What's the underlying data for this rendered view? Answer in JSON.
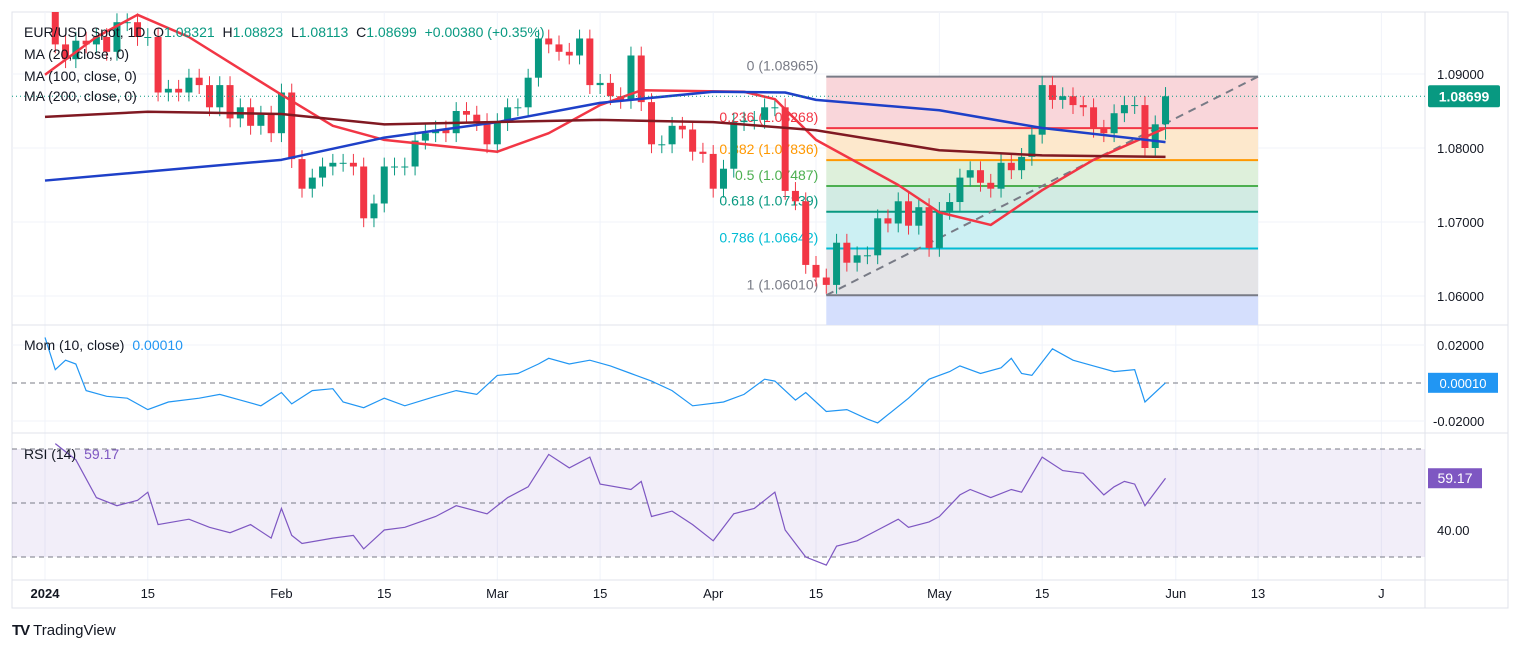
{
  "header": {
    "symbol": "EUR/USD Spot, 1D",
    "open_label": "O",
    "open": "1.08321",
    "high_label": "H",
    "high": "1.08823",
    "low_label": "L",
    "low": "1.08113",
    "close_label": "C",
    "close": "1.08699",
    "change": "+0.00380 (+0.35%)",
    "ma_legends": [
      "MA (20, close, 0)",
      "MA (100, close, 0)",
      "MA (200, close, 0)"
    ]
  },
  "brand": "TradingView",
  "colors": {
    "up": "#089981",
    "down": "#f23645",
    "ma20": "#f23645",
    "ma100": "#1e40c8",
    "ma200": "#801922",
    "momentum": "#2196f3",
    "rsi": "#7e57c2",
    "last_price": "#089981"
  },
  "chart_data": [
    {
      "type": "candlestick",
      "title": "EUR/USD Spot, 1D",
      "ylim": [
        1.0555,
        1.0982
      ],
      "y_ticks": [
        "1.06000",
        "1.07000",
        "1.08000",
        "1.09000"
      ],
      "x_ticks": [
        "2024",
        "15",
        "Feb",
        "15",
        "Mar",
        "15",
        "Apr",
        "15",
        "May",
        "15",
        "Jun",
        "13",
        "J"
      ],
      "last_price": "1.08699",
      "candles": {
        "2024-01": {
          "days": [
            1,
            2,
            3,
            4,
            5,
            8,
            9,
            10,
            11,
            12,
            15,
            16,
            17,
            18,
            19,
            22,
            23,
            24,
            25,
            26,
            29,
            30,
            31
          ],
          "close": [
            1.104,
            1.094,
            1.092,
            1.0945,
            1.094,
            1.095,
            1.093,
            1.097,
            1.097,
            1.095,
            1.095,
            1.0875,
            1.088,
            1.0875,
            1.0895,
            1.0885,
            1.0855,
            1.0885,
            1.084,
            1.0855,
            1.083,
            1.0845,
            1.082
          ]
        },
        "2024-02": {
          "days": [
            1,
            2,
            5,
            6,
            7,
            8,
            9,
            12,
            13,
            14,
            15,
            16,
            19,
            20,
            21,
            22,
            23,
            26,
            27,
            28,
            29
          ],
          "close": [
            1.0875,
            1.0785,
            1.0745,
            1.076,
            1.0775,
            1.078,
            1.078,
            1.0775,
            1.0705,
            1.0725,
            1.0775,
            1.0775,
            1.0775,
            1.081,
            1.082,
            1.0825,
            1.082,
            1.085,
            1.0845,
            1.0835,
            1.0805
          ]
        },
        "2024-03": {
          "days": [
            1,
            4,
            5,
            6,
            7,
            8,
            11,
            12,
            13,
            14,
            15,
            18,
            19,
            20,
            21,
            22,
            25,
            26,
            27,
            28,
            29
          ],
          "close": [
            1.0835,
            1.0855,
            1.0855,
            1.0895,
            1.0948,
            1.094,
            1.093,
            1.0925,
            1.0948,
            1.0885,
            1.0888,
            1.087,
            1.0865,
            1.0925,
            1.0862,
            1.0805,
            1.0805,
            1.083,
            1.0825,
            1.0795,
            1.0792
          ]
        },
        "2024-04": {
          "days": [
            1,
            2,
            3,
            4,
            5,
            8,
            9,
            10,
            11,
            12,
            15,
            16,
            17,
            18,
            19,
            22,
            23,
            24,
            25,
            26,
            29,
            30
          ],
          "close": [
            1.0745,
            1.0772,
            1.0835,
            1.0837,
            1.0838,
            1.0855,
            1.0855,
            1.0742,
            1.0728,
            1.0642,
            1.0625,
            1.0615,
            1.0672,
            1.0645,
            1.0655,
            1.0655,
            1.0705,
            1.0698,
            1.0728,
            1.0695,
            1.072,
            1.0665
          ]
        },
        "2024-05": {
          "days": [
            1,
            2,
            3,
            6,
            7,
            8,
            9,
            10,
            13,
            14,
            15,
            16,
            17,
            20,
            21,
            22,
            23,
            24,
            27,
            28,
            29,
            30,
            31
          ],
          "close": [
            1.0715,
            1.0727,
            1.076,
            1.077,
            1.0753,
            1.0745,
            1.078,
            1.077,
            1.0788,
            1.0818,
            1.0885,
            1.0865,
            1.087,
            1.0858,
            1.0855,
            1.0826,
            1.082,
            1.0847,
            1.0858,
            1.0858,
            1.08,
            1.0832,
            1.08699
          ]
        }
      },
      "last_candle": {
        "date": "2024-05-31",
        "open": 1.08321,
        "high": 1.08823,
        "low": 1.08113,
        "close": 1.08699
      },
      "moving_averages": [
        {
          "name": "MA (20, close, 0)",
          "points": [
            [
              "2024-01-01",
              1.0899
            ],
            [
              "2024-01-08",
              1.095
            ],
            [
              "2024-01-12",
              1.098
            ],
            [
              "2024-01-19",
              1.095
            ],
            [
              "2024-02-01",
              1.0872
            ],
            [
              "2024-02-08",
              1.083
            ],
            [
              "2024-02-15",
              1.0811
            ],
            [
              "2024-03-01",
              1.0795
            ],
            [
              "2024-03-08",
              1.082
            ],
            [
              "2024-03-15",
              1.0858
            ],
            [
              "2024-03-21",
              1.0878
            ],
            [
              "2024-04-04",
              1.0876
            ],
            [
              "2024-04-09",
              1.0866
            ],
            [
              "2024-04-15",
              1.0811
            ],
            [
              "2024-04-25",
              1.075
            ],
            [
              "2024-05-01",
              1.0713
            ],
            [
              "2024-05-08",
              1.0696
            ],
            [
              "2024-05-15",
              1.0743
            ],
            [
              "2024-05-22",
              1.0784
            ],
            [
              "2024-05-31",
              1.0827
            ]
          ]
        },
        {
          "name": "MA (100, close, 0)",
          "points": [
            [
              "2024-01-01",
              1.0756
            ],
            [
              "2024-02-01",
              1.0784
            ],
            [
              "2024-02-15",
              1.0814
            ],
            [
              "2024-03-01",
              1.0835
            ],
            [
              "2024-03-15",
              1.0861
            ],
            [
              "2024-04-01",
              1.0876
            ],
            [
              "2024-04-10",
              1.0875
            ],
            [
              "2024-04-15",
              1.0865
            ],
            [
              "2024-05-01",
              1.0851
            ],
            [
              "2024-05-15",
              1.0827
            ],
            [
              "2024-05-31",
              1.0808
            ]
          ]
        },
        {
          "name": "MA (200, close, 0)",
          "points": [
            [
              "2024-01-01",
              1.0842
            ],
            [
              "2024-01-15",
              1.0849
            ],
            [
              "2024-02-01",
              1.0846
            ],
            [
              "2024-02-15",
              1.0832
            ],
            [
              "2024-03-15",
              1.0838
            ],
            [
              "2024-04-01",
              1.0835
            ],
            [
              "2024-04-15",
              1.0824
            ],
            [
              "2024-05-01",
              1.0797
            ],
            [
              "2024-05-15",
              1.079
            ],
            [
              "2024-05-31",
              1.0788
            ]
          ]
        }
      ],
      "fibonacci": {
        "from": {
          "date": "2024-04-16",
          "price": 1.0601
        },
        "to": {
          "date": "2024-06-13",
          "price": 1.08965
        },
        "levels": [
          {
            "ratio": 0,
            "price": 1.08965,
            "label": "0 (1.08965)",
            "color": "#787b86",
            "fill": "#f9d6da"
          },
          {
            "ratio": 0.236,
            "price": 1.08268,
            "label": "0.236 (1.08268)",
            "color": "#f23645",
            "fill": "#fde8cc"
          },
          {
            "ratio": 0.382,
            "price": 1.07836,
            "label": "0.382 (1.07836)",
            "color": "#ff9800",
            "fill": "#def0db"
          },
          {
            "ratio": 0.5,
            "price": 1.07487,
            "label": "0.5 (1.07487)",
            "color": "#4caf50",
            "fill": "#d2ebe3"
          },
          {
            "ratio": 0.618,
            "price": 1.07139,
            "label": "0.618 (1.07139)",
            "color": "#089981",
            "fill": "#ccf0f3"
          },
          {
            "ratio": 0.786,
            "price": 1.06642,
            "label": "0.786 (1.06642)",
            "color": "#00bcd4",
            "fill": "#e4e4e7"
          },
          {
            "ratio": 1,
            "price": 1.0601,
            "label": "1 (1.06010)",
            "color": "#787b86",
            "fill": "#d5dffd"
          }
        ]
      }
    },
    {
      "type": "line",
      "title": "Mom (10, close)",
      "value": "0.00010",
      "y_ticks": [
        "0.02000",
        "-0.02000"
      ],
      "zero_line": true,
      "points": [
        [
          "2024-01-01",
          0.024
        ],
        [
          "2024-01-02",
          0.007
        ],
        [
          "2024-01-03",
          0.012
        ],
        [
          "2024-01-04",
          0.01
        ],
        [
          "2024-01-05",
          -0.004
        ],
        [
          "2024-01-09",
          -0.007
        ],
        [
          "2024-01-11",
          -0.008
        ],
        [
          "2024-01-15",
          -0.014
        ],
        [
          "2024-01-17",
          -0.01
        ],
        [
          "2024-01-22",
          -0.008
        ],
        [
          "2024-01-24",
          -0.006
        ],
        [
          "2024-01-26",
          -0.009
        ],
        [
          "2024-01-30",
          -0.012
        ],
        [
          "2024-02-01",
          -0.005
        ],
        [
          "2024-02-02",
          -0.011
        ],
        [
          "2024-02-06",
          -0.004
        ],
        [
          "2024-02-08",
          -0.003
        ],
        [
          "2024-02-09",
          -0.01
        ],
        [
          "2024-02-13",
          -0.013
        ],
        [
          "2024-02-15",
          -0.008
        ],
        [
          "2024-02-19",
          -0.012
        ],
        [
          "2024-02-22",
          -0.007
        ],
        [
          "2024-02-26",
          -0.004
        ],
        [
          "2024-02-28",
          -0.006
        ],
        [
          "2024-03-01",
          0.004
        ],
        [
          "2024-03-05",
          0.005
        ],
        [
          "2024-03-07",
          0.01
        ],
        [
          "2024-03-08",
          0.013
        ],
        [
          "2024-03-12",
          0.01
        ],
        [
          "2024-03-14",
          0.012
        ],
        [
          "2024-03-18",
          0.009
        ],
        [
          "2024-03-20",
          0.005
        ],
        [
          "2024-03-22",
          0.001
        ],
        [
          "2024-03-26",
          -0.004
        ],
        [
          "2024-03-28",
          -0.012
        ],
        [
          "2024-04-02",
          -0.01
        ],
        [
          "2024-04-04",
          -0.006
        ],
        [
          "2024-04-08",
          0.002
        ],
        [
          "2024-04-09",
          0.001
        ],
        [
          "2024-04-11",
          -0.009
        ],
        [
          "2024-04-12",
          -0.005
        ],
        [
          "2024-04-16",
          -0.015
        ],
        [
          "2024-04-18",
          -0.014
        ],
        [
          "2024-04-22",
          -0.019
        ],
        [
          "2024-04-23",
          -0.021
        ],
        [
          "2024-04-26",
          -0.008
        ],
        [
          "2024-04-30",
          0.002
        ],
        [
          "2024-05-02",
          0.006
        ],
        [
          "2024-05-03",
          0.009
        ],
        [
          "2024-05-07",
          0.005
        ],
        [
          "2024-05-09",
          0.008
        ],
        [
          "2024-05-10",
          0.013
        ],
        [
          "2024-05-13",
          0.005
        ],
        [
          "2024-05-14",
          0.004
        ],
        [
          "2024-05-16",
          0.018
        ],
        [
          "2024-05-20",
          0.012
        ],
        [
          "2024-05-22",
          0.009
        ],
        [
          "2024-05-24",
          0.006
        ],
        [
          "2024-05-28",
          0.007
        ],
        [
          "2024-05-29",
          -0.01
        ],
        [
          "2024-05-31",
          0.0001
        ]
      ]
    },
    {
      "type": "line",
      "title": "RSI (14)",
      "value": "59.17",
      "y_ticks": [
        "40.00"
      ],
      "bands": [
        30,
        50,
        70
      ],
      "points": [
        [
          "2024-01-02",
          72
        ],
        [
          "2024-01-04",
          66
        ],
        [
          "2024-01-08",
          52
        ],
        [
          "2024-01-10",
          49
        ],
        [
          "2024-01-12",
          51
        ],
        [
          "2024-01-15",
          54
        ],
        [
          "2024-01-16",
          42
        ],
        [
          "2024-01-19",
          44
        ],
        [
          "2024-01-23",
          41
        ],
        [
          "2024-01-25",
          39
        ],
        [
          "2024-01-29",
          42
        ],
        [
          "2024-01-31",
          37
        ],
        [
          "2024-02-01",
          48
        ],
        [
          "2024-02-02",
          38
        ],
        [
          "2024-02-05",
          35
        ],
        [
          "2024-02-08",
          37
        ],
        [
          "2024-02-12",
          38
        ],
        [
          "2024-02-13",
          33
        ],
        [
          "2024-02-15",
          40
        ],
        [
          "2024-02-19",
          41
        ],
        [
          "2024-02-22",
          45
        ],
        [
          "2024-02-26",
          49
        ],
        [
          "2024-02-29",
          46
        ],
        [
          "2024-03-04",
          52
        ],
        [
          "2024-03-06",
          56
        ],
        [
          "2024-03-08",
          68
        ],
        [
          "2024-03-12",
          63
        ],
        [
          "2024-03-14",
          67
        ],
        [
          "2024-03-15",
          57
        ],
        [
          "2024-03-20",
          55
        ],
        [
          "2024-03-21",
          58
        ],
        [
          "2024-03-22",
          45
        ],
        [
          "2024-03-26",
          47
        ],
        [
          "2024-03-28",
          42
        ],
        [
          "2024-04-01",
          36
        ],
        [
          "2024-04-03",
          46
        ],
        [
          "2024-04-05",
          48
        ],
        [
          "2024-04-09",
          54
        ],
        [
          "2024-04-10",
          40
        ],
        [
          "2024-04-12",
          30
        ],
        [
          "2024-04-16",
          27
        ],
        [
          "2024-04-17",
          34
        ],
        [
          "2024-04-19",
          36
        ],
        [
          "2024-04-23",
          40
        ],
        [
          "2024-04-25",
          44
        ],
        [
          "2024-04-26",
          41
        ],
        [
          "2024-04-30",
          43
        ],
        [
          "2024-05-01",
          45
        ],
        [
          "2024-05-03",
          53
        ],
        [
          "2024-05-06",
          55
        ],
        [
          "2024-05-08",
          52
        ],
        [
          "2024-05-10",
          55
        ],
        [
          "2024-05-13",
          54
        ],
        [
          "2024-05-15",
          67
        ],
        [
          "2024-05-17",
          62
        ],
        [
          "2024-05-21",
          61
        ],
        [
          "2024-05-23",
          53
        ],
        [
          "2024-05-24",
          56
        ],
        [
          "2024-05-27",
          58
        ],
        [
          "2024-05-28",
          57
        ],
        [
          "2024-05-29",
          49
        ],
        [
          "2024-05-31",
          59.17
        ]
      ]
    }
  ]
}
